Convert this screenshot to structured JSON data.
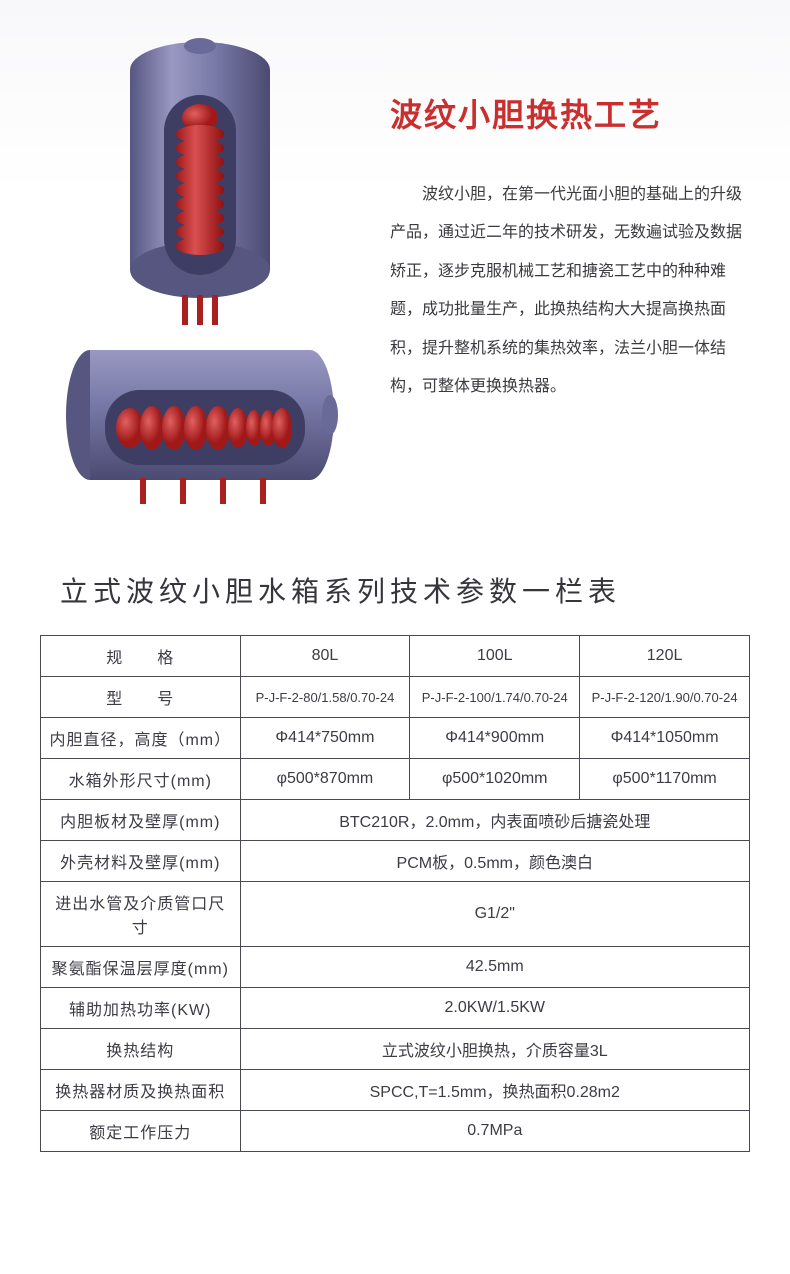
{
  "heading": "波纹小胆换热工艺",
  "description": "波纹小胆，在第一代光面小胆的基础上的升级产品，通过近二年的技术研发，无数遍试验及数据矫正，逐步克服机械工艺和搪瓷工艺中的种种难题，成功批量生产，此换热结构大大提高换热面积，提升整机系统的集热效率，法兰小胆一体结构，可整体更换换热器。",
  "table_title": "立式波纹小胆水箱系列技术参数一栏表",
  "table": {
    "rows": [
      {
        "label": "规　　格",
        "cells": [
          "80L",
          "100L",
          "120L"
        ],
        "label_class": "spaced"
      },
      {
        "label": "型　　号",
        "cells": [
          "P-J-F-2-80/1.58/0.70-24",
          "P-J-F-2-100/1.74/0.70-24",
          "P-J-F-2-120/1.90/0.70-24"
        ],
        "label_class": "spaced",
        "small": true
      },
      {
        "label": "内胆直径，高度（mm）",
        "cells": [
          "Φ414*750mm",
          "Φ414*900mm",
          "Φ414*1050mm"
        ]
      },
      {
        "label": "水箱外形尺寸(mm)",
        "cells": [
          "φ500*870mm",
          "φ500*1020mm",
          "φ500*1170mm"
        ]
      },
      {
        "label": "内胆板材及壁厚(mm)",
        "merged": "BTC210R，2.0mm，内表面喷砂后搪瓷处理"
      },
      {
        "label": "外壳材料及壁厚(mm)",
        "merged": "PCM板，0.5mm，颜色澳白"
      },
      {
        "label": "进出水管及介质管口尺寸",
        "merged": "G1/2\""
      },
      {
        "label": "聚氨酯保温层厚度(mm)",
        "merged": "42.5mm"
      },
      {
        "label": "辅助加热功率(KW)",
        "merged": "2.0KW/1.5KW"
      },
      {
        "label": "换热结构",
        "merged": "立式波纹小胆换热，介质容量3L",
        "label_class": "spaced2"
      },
      {
        "label": "换热器材质及换热面积",
        "merged": "SPCC,T=1.5mm，换热面积0.28m2"
      },
      {
        "label": "额定工作压力",
        "merged": "0.7MPa"
      }
    ]
  },
  "colors": {
    "heading": "#c92f2f",
    "body_text": "#3a3a3f",
    "table_border": "#4a4a55",
    "tank_outer": "#7a7aa8",
    "tank_outer_light": "#9898c2",
    "tank_outer_dark": "#565680",
    "tank_inner": "#4a4a72",
    "coil": "#b82020",
    "coil_light": "#d85050"
  }
}
